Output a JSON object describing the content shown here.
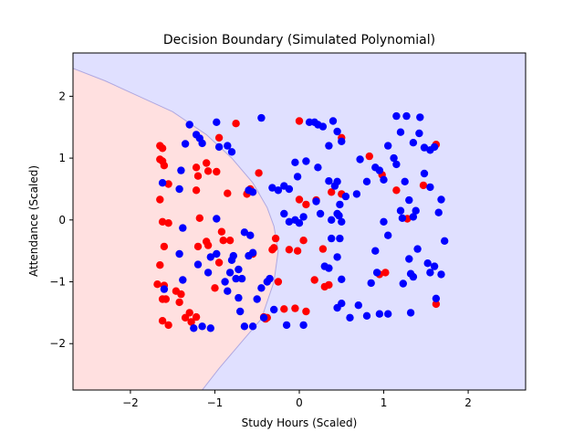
{
  "chart_data": {
    "type": "scatter",
    "title": "Decision Boundary (Simulated Polynomial)",
    "xlabel": "Study Hours (Scaled)",
    "ylabel": "Attendance (Scaled)",
    "xlim": [
      -2.68,
      2.68
    ],
    "ylim": [
      -2.75,
      2.7
    ],
    "xticks": [
      -2,
      -1,
      0,
      1,
      2
    ],
    "yticks": [
      -2,
      -1,
      0,
      1,
      2
    ],
    "grid": false,
    "legend": "none",
    "regions": {
      "class0_color": "#ffe0e0",
      "class1_color": "#e0e0ff",
      "boundary_color": "#b0a8e0",
      "boundary": [
        [
          -2.68,
          2.45
        ],
        [
          -2.3,
          2.25
        ],
        [
          -1.9,
          2.0
        ],
        [
          -1.5,
          1.75
        ],
        [
          -1.1,
          1.38
        ],
        [
          -0.8,
          1.0
        ],
        [
          -0.55,
          0.6
        ],
        [
          -0.38,
          0.2
        ],
        [
          -0.3,
          -0.1
        ],
        [
          -0.25,
          -0.5
        ],
        [
          -0.3,
          -1.0
        ],
        [
          -0.45,
          -1.6
        ],
        [
          -0.7,
          -2.0
        ],
        [
          -0.95,
          -2.4
        ],
        [
          -1.15,
          -2.75
        ]
      ]
    },
    "series": [
      {
        "color": "#ff0000",
        "points": [
          [
            -1.65,
            1.2
          ],
          [
            -1.62,
            1.16
          ],
          [
            -1.65,
            0.98
          ],
          [
            -1.62,
            0.95
          ],
          [
            -1.6,
            0.88
          ],
          [
            -1.55,
            0.58
          ],
          [
            -1.65,
            0.33
          ],
          [
            -1.62,
            -0.03
          ],
          [
            -1.55,
            -0.05
          ],
          [
            -1.6,
            -0.43
          ],
          [
            -1.65,
            -0.73
          ],
          [
            -1.68,
            -1.04
          ],
          [
            -1.6,
            -1.06
          ],
          [
            -1.58,
            -1.28
          ],
          [
            -1.62,
            -1.28
          ],
          [
            -1.62,
            -1.63
          ],
          [
            -1.55,
            -1.7
          ],
          [
            -1.46,
            -1.15
          ],
          [
            -1.4,
            -1.2
          ],
          [
            -1.42,
            -1.33
          ],
          [
            -1.35,
            -1.58
          ],
          [
            -1.3,
            -1.5
          ],
          [
            -1.28,
            -1.65
          ],
          [
            -1.22,
            -1.57
          ],
          [
            -1.2,
            -0.43
          ],
          [
            -1.18,
            0.03
          ],
          [
            -1.22,
            0.48
          ],
          [
            -1.22,
            0.85
          ],
          [
            -1.2,
            0.71
          ],
          [
            -1.1,
            0.92
          ],
          [
            -1.08,
            0.79
          ],
          [
            -1.1,
            -0.35
          ],
          [
            -1.08,
            -0.41
          ],
          [
            -1.0,
            -1.1
          ],
          [
            -0.95,
            -0.69
          ],
          [
            -0.9,
            -0.33
          ],
          [
            -0.92,
            -0.19
          ],
          [
            -0.95,
            1.33
          ],
          [
            -0.98,
            0.78
          ],
          [
            -0.85,
            0.43
          ],
          [
            -0.82,
            -0.33
          ],
          [
            -0.75,
            1.56
          ],
          [
            -0.62,
            0.42
          ],
          [
            -0.58,
            0.5
          ],
          [
            -0.55,
            -0.55
          ],
          [
            -0.48,
            0.76
          ],
          [
            -0.4,
            -1.6
          ],
          [
            -0.42,
            -1.57
          ],
          [
            -0.38,
            -1.58
          ],
          [
            -0.32,
            -0.48
          ],
          [
            -0.3,
            -0.45
          ],
          [
            -0.28,
            -0.3
          ],
          [
            -0.25,
            -1.0
          ],
          [
            -0.18,
            -1.44
          ],
          [
            -0.12,
            -0.48
          ],
          [
            -0.05,
            -1.43
          ],
          [
            -0.02,
            -0.5
          ],
          [
            0.0,
            1.6
          ],
          [
            0.0,
            0.33
          ],
          [
            0.05,
            -0.33
          ],
          [
            0.08,
            0.25
          ],
          [
            0.08,
            -1.48
          ],
          [
            0.18,
            -0.97
          ],
          [
            0.2,
            0.32
          ],
          [
            0.28,
            -0.47
          ],
          [
            0.3,
            -1.08
          ],
          [
            0.35,
            -1.05
          ],
          [
            0.38,
            0.45
          ],
          [
            0.5,
            1.33
          ],
          [
            0.5,
            0.42
          ],
          [
            0.83,
            1.03
          ],
          [
            0.98,
            0.73
          ],
          [
            0.95,
            -0.88
          ],
          [
            1.02,
            -0.85
          ],
          [
            1.15,
            0.48
          ],
          [
            1.28,
            0.02
          ],
          [
            1.47,
            0.56
          ],
          [
            1.62,
            1.22
          ],
          [
            1.62,
            -1.36
          ]
        ]
      },
      {
        "color": "#0000ff",
        "points": [
          [
            -1.3,
            1.54
          ],
          [
            -1.22,
            1.38
          ],
          [
            -1.18,
            1.32
          ],
          [
            -1.35,
            1.23
          ],
          [
            -1.15,
            1.24
          ],
          [
            -0.98,
            1.58
          ],
          [
            -0.95,
            1.18
          ],
          [
            -0.85,
            1.2
          ],
          [
            -0.8,
            1.1
          ],
          [
            -0.6,
            0.48
          ],
          [
            -0.55,
            0.45
          ],
          [
            -0.45,
            1.65
          ],
          [
            -0.32,
            0.52
          ],
          [
            -0.25,
            0.48
          ],
          [
            -0.18,
            0.55
          ],
          [
            -0.05,
            0.93
          ],
          [
            -0.02,
            0.7
          ],
          [
            0.08,
            0.95
          ],
          [
            0.12,
            1.58
          ],
          [
            0.18,
            1.58
          ],
          [
            0.22,
            1.54
          ],
          [
            0.28,
            1.51
          ],
          [
            0.4,
            1.6
          ],
          [
            0.45,
            1.43
          ],
          [
            0.5,
            1.27
          ],
          [
            0.35,
            1.2
          ],
          [
            0.22,
            0.85
          ],
          [
            0.35,
            0.63
          ],
          [
            0.45,
            0.62
          ],
          [
            0.42,
            0.55
          ],
          [
            0.48,
            0.25
          ],
          [
            0.55,
            0.38
          ],
          [
            0.68,
            0.42
          ],
          [
            0.72,
            0.98
          ],
          [
            0.8,
            0.62
          ],
          [
            0.9,
            0.85
          ],
          [
            0.95,
            0.8
          ],
          [
            1.0,
            0.65
          ],
          [
            1.05,
            1.2
          ],
          [
            1.12,
            1.0
          ],
          [
            1.15,
            0.9
          ],
          [
            1.2,
            1.42
          ],
          [
            1.25,
            0.62
          ],
          [
            1.3,
            0.32
          ],
          [
            1.35,
            1.25
          ],
          [
            1.42,
            1.4
          ],
          [
            1.48,
            1.17
          ],
          [
            1.55,
            1.13
          ],
          [
            1.6,
            1.18
          ],
          [
            1.48,
            0.75
          ],
          [
            1.55,
            0.53
          ],
          [
            1.65,
            0.12
          ],
          [
            1.68,
            0.33
          ],
          [
            1.72,
            -0.34
          ],
          [
            1.15,
            1.68
          ],
          [
            1.27,
            1.68
          ],
          [
            1.43,
            1.66
          ],
          [
            1.2,
            0.15
          ],
          [
            1.22,
            0.03
          ],
          [
            1.35,
            0.05
          ],
          [
            1.38,
            0.15
          ],
          [
            1.4,
            -0.47
          ],
          [
            1.3,
            -0.63
          ],
          [
            1.52,
            -0.7
          ],
          [
            1.6,
            -0.75
          ],
          [
            1.55,
            -0.85
          ],
          [
            1.62,
            -1.27
          ],
          [
            1.68,
            -0.88
          ],
          [
            1.35,
            -0.92
          ],
          [
            1.32,
            -0.87
          ],
          [
            1.23,
            -1.03
          ],
          [
            1.05,
            -0.25
          ],
          [
            1.0,
            -0.03
          ],
          [
            0.9,
            -0.5
          ],
          [
            0.92,
            -0.85
          ],
          [
            0.85,
            -1.02
          ],
          [
            0.7,
            -1.38
          ],
          [
            0.8,
            -1.55
          ],
          [
            0.95,
            -1.52
          ],
          [
            1.05,
            -1.52
          ],
          [
            1.32,
            -1.5
          ],
          [
            0.6,
            -1.58
          ],
          [
            0.5,
            -1.35
          ],
          [
            0.45,
            -1.42
          ],
          [
            0.5,
            -0.96
          ],
          [
            0.45,
            -0.6
          ],
          [
            0.38,
            -0.3
          ],
          [
            0.3,
            -0.75
          ],
          [
            0.35,
            -0.78
          ],
          [
            0.48,
            -0.3
          ],
          [
            0.47,
            0.07
          ],
          [
            0.5,
            -0.03
          ],
          [
            0.38,
            0.0
          ],
          [
            0.25,
            0.1
          ],
          [
            0.2,
            0.3
          ],
          [
            0.05,
            0.05
          ],
          [
            -0.05,
            0.0
          ],
          [
            -0.12,
            -0.03
          ],
          [
            -0.18,
            0.1
          ],
          [
            -0.12,
            0.5
          ],
          [
            0.0,
            -0.05
          ],
          [
            0.45,
            0.1
          ],
          [
            0.05,
            -1.7
          ],
          [
            -0.15,
            -1.7
          ],
          [
            -0.3,
            -1.45
          ],
          [
            -0.42,
            -1.58
          ],
          [
            -0.5,
            -1.28
          ],
          [
            -0.45,
            -1.1
          ],
          [
            -0.38,
            -1.0
          ],
          [
            -0.35,
            -0.95
          ],
          [
            -0.55,
            -0.53
          ],
          [
            -0.65,
            -0.2
          ],
          [
            -0.6,
            -0.58
          ],
          [
            -0.68,
            -0.95
          ],
          [
            -0.75,
            -0.95
          ],
          [
            -0.72,
            -0.8
          ],
          [
            -0.78,
            -0.58
          ],
          [
            -0.72,
            -1.26
          ],
          [
            -0.65,
            -1.72
          ],
          [
            -0.7,
            -1.48
          ],
          [
            -0.55,
            -1.72
          ],
          [
            -0.85,
            -1.15
          ],
          [
            -0.98,
            -0.55
          ],
          [
            -1.05,
            -1.75
          ],
          [
            -1.15,
            -1.72
          ],
          [
            -1.25,
            -1.75
          ],
          [
            -1.08,
            -0.85
          ],
          [
            -1.05,
            -0.6
          ],
          [
            -1.38,
            -0.13
          ],
          [
            -1.42,
            -0.55
          ],
          [
            -1.38,
            -0.97
          ],
          [
            -1.42,
            0.5
          ],
          [
            -1.4,
            0.8
          ],
          [
            -1.2,
            -0.72
          ],
          [
            -0.58,
            -0.25
          ],
          [
            -0.8,
            -0.65
          ],
          [
            -0.82,
            -0.85
          ],
          [
            -0.98,
            0.02
          ],
          [
            -0.88,
            -1.0
          ],
          [
            -1.6,
            -1.12
          ],
          [
            -1.62,
            0.6
          ]
        ]
      }
    ]
  }
}
